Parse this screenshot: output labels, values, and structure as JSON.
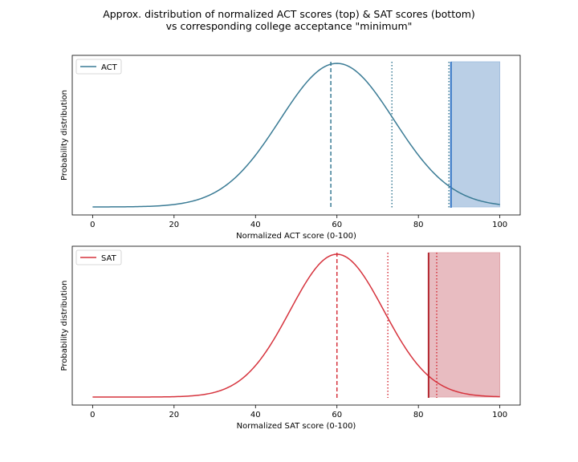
{
  "figure": {
    "title_line1": "Approx. distribution of normalized ACT scores (top) & SAT scores (bottom)",
    "title_line2": "vs corresponding college acceptance \"minimum\""
  },
  "chart_data": [
    {
      "type": "line",
      "series_name": "ACT",
      "color": "#3a7b95",
      "shade_color": "#9dbbdc",
      "xlabel": "Normalized ACT score (0-100)",
      "ylabel": "Probability distribution",
      "xlim": [
        -5,
        105
      ],
      "xticks": [
        0,
        20,
        40,
        60,
        80,
        100
      ],
      "curve": {
        "mean": 60,
        "sd": 14
      },
      "vlines": [
        {
          "x": 58.5,
          "style": "dashed",
          "color": "#3a7b95"
        },
        {
          "x": 73.5,
          "style": "dotted",
          "color": "#3a7b95"
        },
        {
          "x": 87.5,
          "style": "dotted",
          "color": "#3a7b95"
        },
        {
          "x": 88,
          "style": "solid",
          "color": "#3173c4"
        }
      ],
      "shade_range": [
        88,
        100
      ],
      "legend": "top-left",
      "grid": false
    },
    {
      "type": "line",
      "series_name": "SAT",
      "color": "#d6333d",
      "shade_color": "#dea0a6",
      "xlabel": "Normalized SAT score (0-100)",
      "ylabel": "Probability distribution",
      "xlim": [
        -5,
        105
      ],
      "xticks": [
        0,
        20,
        40,
        60,
        80,
        100
      ],
      "curve": {
        "mean": 60,
        "sd": 11.5
      },
      "vlines": [
        {
          "x": 60,
          "style": "dashed",
          "color": "#d6333d"
        },
        {
          "x": 72.5,
          "style": "dotted",
          "color": "#d6333d"
        },
        {
          "x": 84.5,
          "style": "dotted",
          "color": "#d6333d"
        },
        {
          "x": 82.5,
          "style": "solid",
          "color": "#b3262e"
        }
      ],
      "shade_range": [
        82.5,
        100
      ],
      "legend": "top-left",
      "grid": false
    }
  ]
}
